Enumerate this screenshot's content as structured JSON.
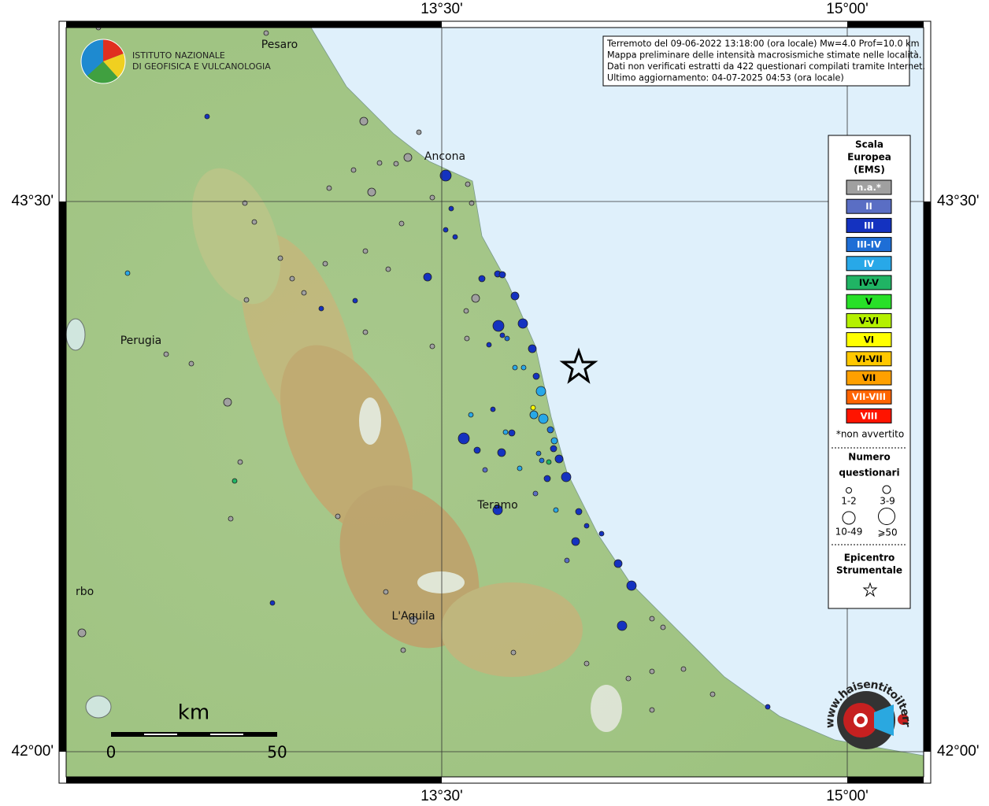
{
  "coordinates": {
    "top": [
      "13°30'",
      "15°00'"
    ],
    "bottom": [
      "13°30'",
      "15°00'"
    ],
    "left": [
      "43°30'",
      "42°00'"
    ],
    "right": [
      "43°30'",
      "42°00'"
    ]
  },
  "places": [
    "Pesaro",
    "Ancona",
    "Perugia",
    "Teramo",
    "L'Aquila",
    "rbo"
  ],
  "logo": [
    "ISTITUTO NAZIONALE",
    "DI GEOFISICA E VULCANOLOGIA"
  ],
  "info": [
    "Terremoto del 09-06-2022 13:18:00 (ora locale) Mw=4.0 Prof=10.0 km",
    "Mappa preliminare delle intensità macrosismiche stimate nelle località.",
    "Dati non verificati estratti da 422 questionari compilati tramite Internet.",
    "Ultimo aggiornamento: 04-07-2025 04:53 (ora locale)"
  ],
  "legend": {
    "title": [
      "Scala",
      "Europea",
      "(EMS)"
    ],
    "classes": [
      {
        "label": "n.a.*",
        "color": "#a0a0a0"
      },
      {
        "label": "II",
        "color": "#5a6ec4"
      },
      {
        "label": "III",
        "color": "#1432c0"
      },
      {
        "label": "III-IV",
        "color": "#1e6ed6"
      },
      {
        "label": "IV",
        "color": "#28a8e8"
      },
      {
        "label": "IV-V",
        "color": "#20b464"
      },
      {
        "label": "V",
        "color": "#28e028"
      },
      {
        "label": "V-VI",
        "color": "#b4f000"
      },
      {
        "label": "VI",
        "color": "#ffff00"
      },
      {
        "label": "VI-VII",
        "color": "#ffc800"
      },
      {
        "label": "VII",
        "color": "#ffa000"
      },
      {
        "label": "VII-VIII",
        "color": "#ff6400"
      },
      {
        "label": "VIII",
        "color": "#ff1400"
      }
    ],
    "note": "*non avvertito",
    "size_title": [
      "Numero",
      "questionari"
    ],
    "sizes": [
      "1-2",
      "3-9",
      "10-49",
      "⩾50"
    ],
    "epicenter": [
      "Epicentro",
      "Strumentale"
    ]
  },
  "scale": {
    "unit": "km",
    "ticks": [
      0,
      50
    ]
  },
  "watermark": "www.haisentitoilterremoto.it"
}
